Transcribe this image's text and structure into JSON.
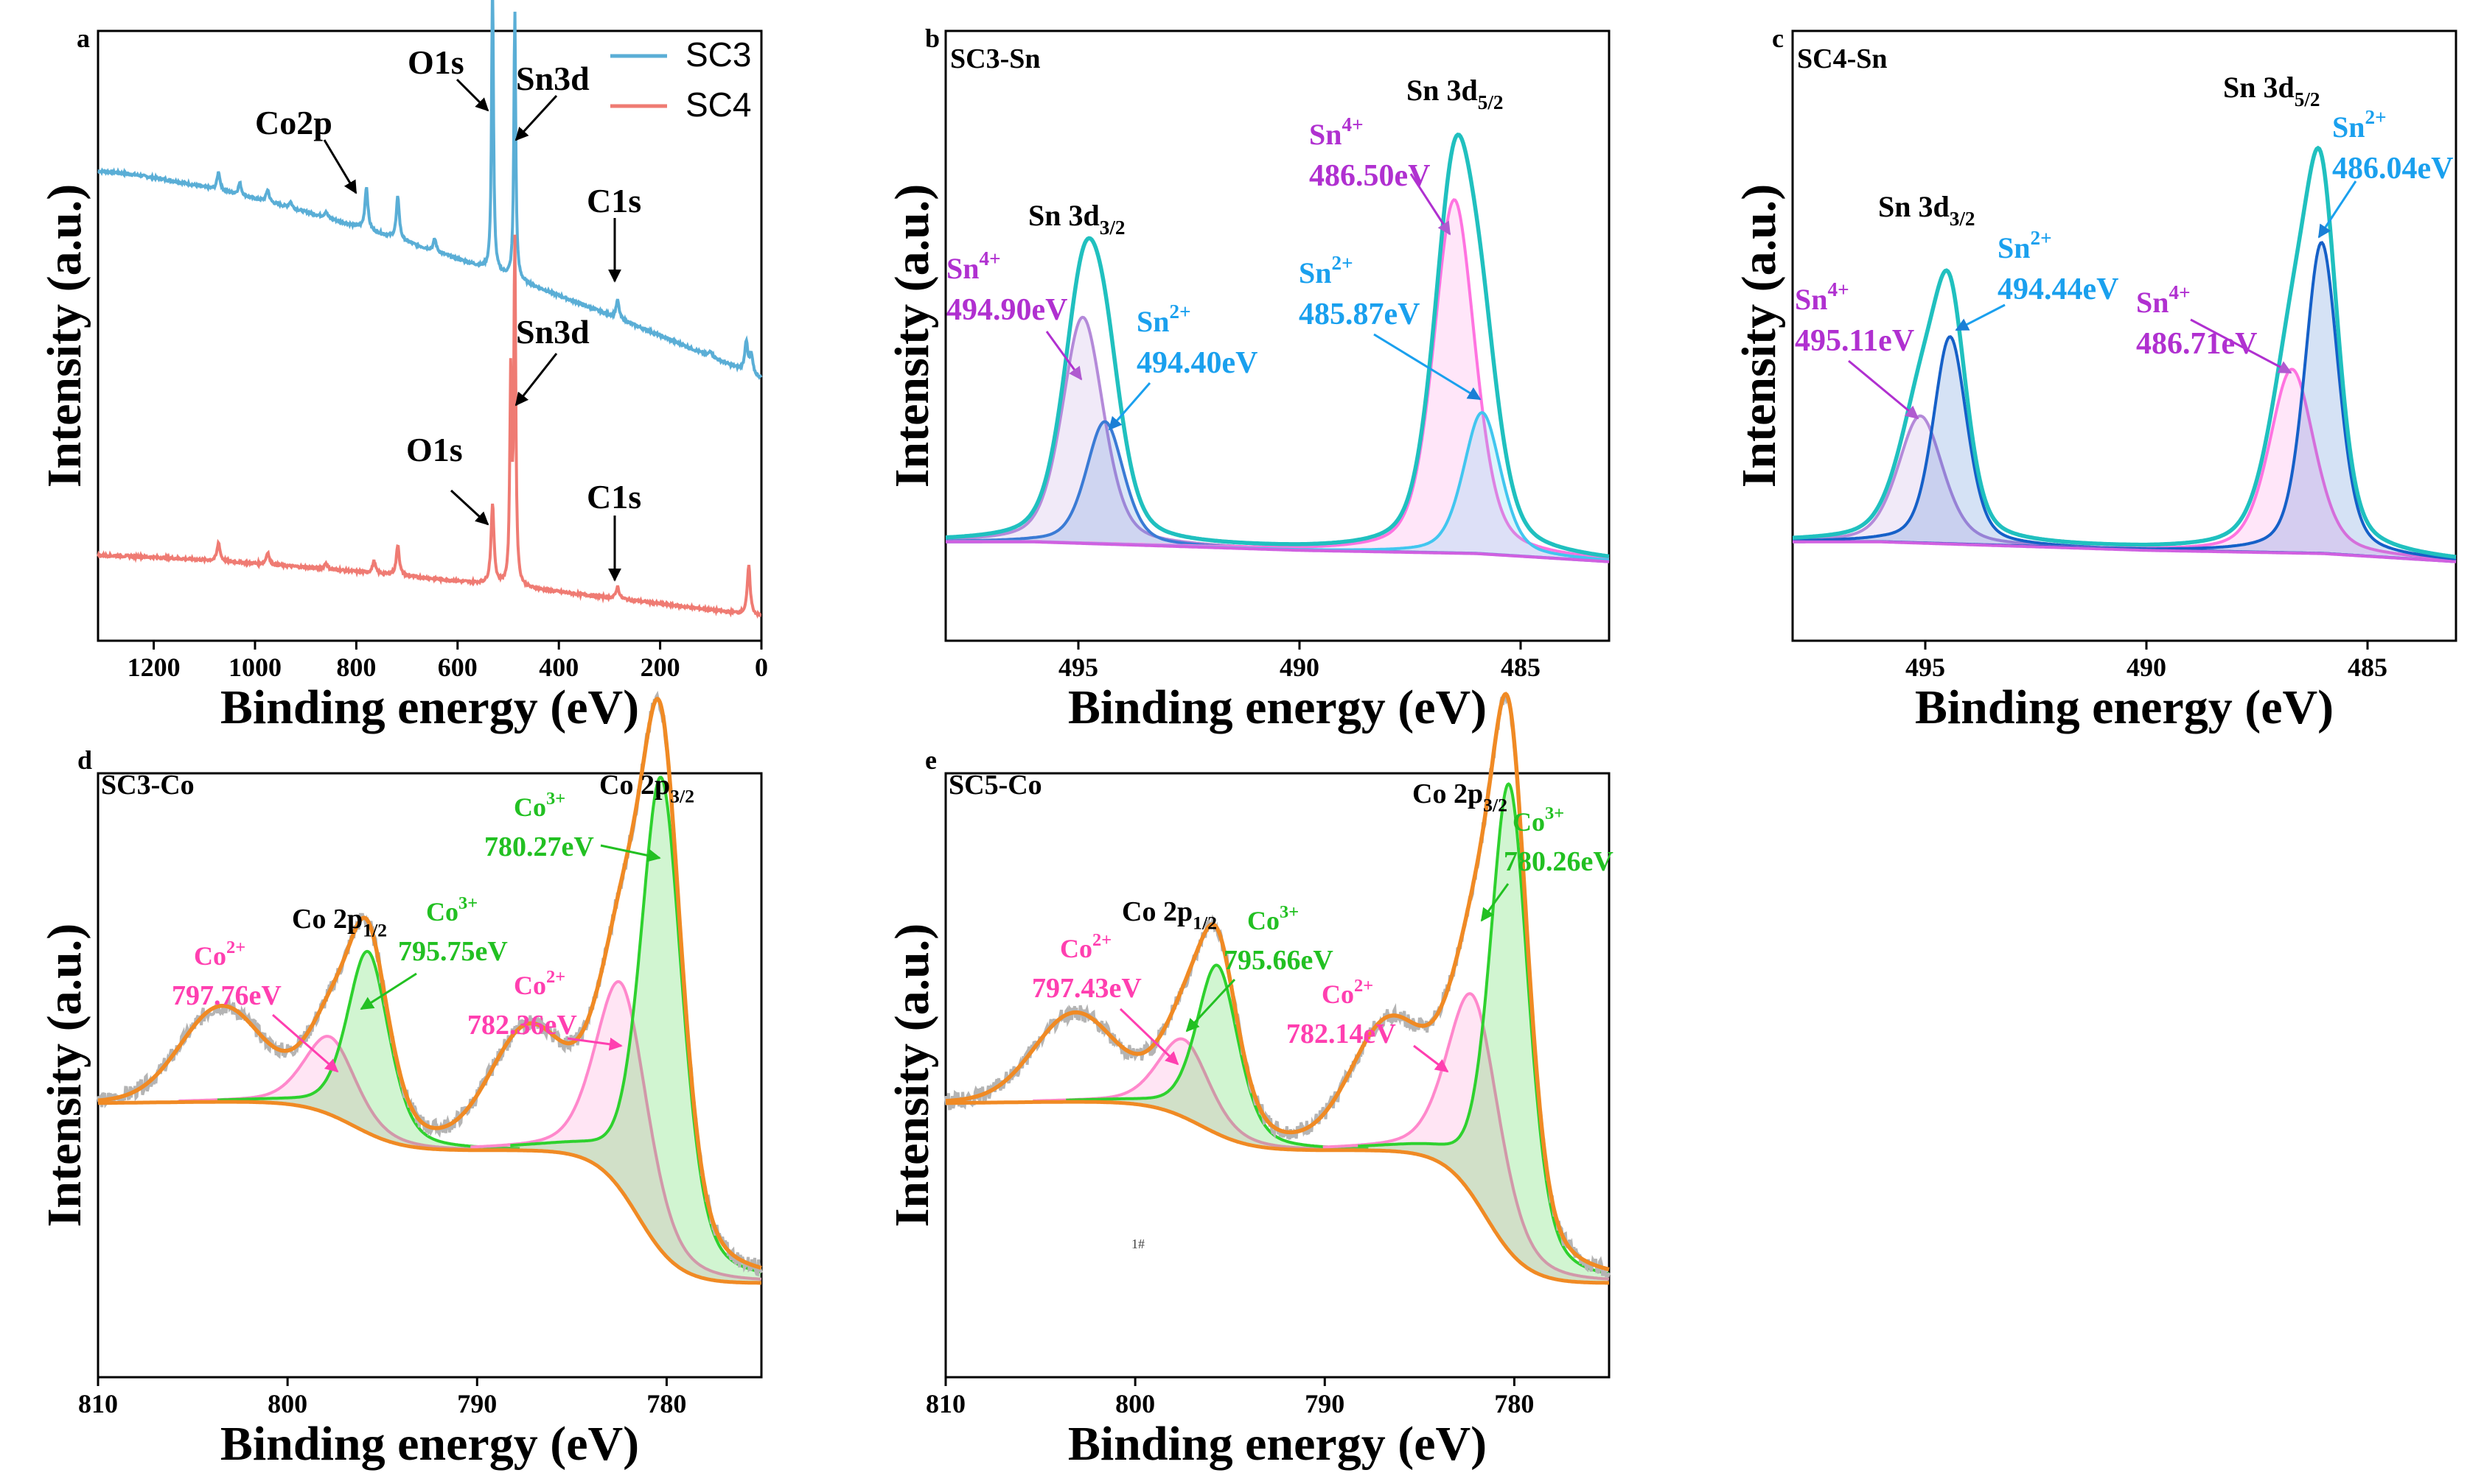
{
  "chart_data": [
    {
      "panel": "a",
      "type": "line",
      "title": "",
      "xlabel": "Binding energy (eV)",
      "ylabel": "Intensity (a.u.)",
      "xlim": [
        1310,
        0
      ],
      "xticks": [
        1200,
        1000,
        800,
        600,
        400,
        200,
        0
      ],
      "legend": {
        "position": "top-right",
        "entries": [
          {
            "name": "SC3",
            "color": "#5aaed6"
          },
          {
            "name": "SC4",
            "color": "#ef7b73"
          }
        ]
      },
      "series": [
        {
          "name": "SC3",
          "color": "#5aaed6",
          "baseline_start": 0.77,
          "baseline_end": 0.43,
          "peaks": [
            [
              1072,
              0.03
            ],
            [
              1030,
              0.02
            ],
            [
              975,
              0.02
            ],
            [
              930,
              0.01
            ],
            [
              860,
              0.01
            ],
            [
              780,
              0.07
            ],
            [
              718,
              0.07
            ],
            [
              645,
              0.02
            ],
            [
              531,
              0.48
            ],
            [
              487,
              0.44
            ],
            [
              284,
              0.03
            ],
            [
              100,
              0.01
            ],
            [
              30,
              0.05
            ],
            [
              20,
              0.03
            ]
          ]
        },
        {
          "name": "SC4",
          "color": "#ef7b73",
          "baseline_start": 0.14,
          "baseline_end": 0.04,
          "peaks": [
            [
              1072,
              0.03
            ],
            [
              975,
              0.02
            ],
            [
              860,
              0.01
            ],
            [
              765,
              0.02
            ],
            [
              718,
              0.05
            ],
            [
              531,
              0.13
            ],
            [
              495,
              0.34
            ],
            [
              487,
              0.56
            ],
            [
              284,
              0.02
            ],
            [
              25,
              0.08
            ]
          ]
        }
      ],
      "annotations": [
        {
          "text": "Co2p",
          "series": "SC3"
        },
        {
          "text": "O1s",
          "series": "SC3"
        },
        {
          "text": "Sn3d",
          "series": "SC3"
        },
        {
          "text": "C1s",
          "series": "SC3"
        },
        {
          "text": "Sn3d",
          "series": "SC4"
        },
        {
          "text": "O1s",
          "series": "SC4"
        },
        {
          "text": "C1s",
          "series": "SC4"
        }
      ]
    },
    {
      "panel": "b",
      "type": "line",
      "title": "SC3-Sn",
      "xlabel": "Binding energy (eV)",
      "ylabel": "Intensity (a.u.)",
      "xlim": [
        498,
        483
      ],
      "xticks": [
        495,
        490,
        485
      ],
      "series": [
        {
          "name": "Sn4+ 3d3/2",
          "center": 494.9,
          "height": 0.48,
          "width": 0.55,
          "color": "#b48ad9"
        },
        {
          "name": "Sn2+ 3d3/2",
          "center": 494.4,
          "height": 0.26,
          "width": 0.5,
          "color": "#3a7bd5"
        },
        {
          "name": "Sn4+ 3d5/2",
          "center": 486.5,
          "height": 0.75,
          "width": 0.55,
          "color": "#ff73e0"
        },
        {
          "name": "Sn2+ 3d5/2",
          "center": 485.87,
          "height": 0.3,
          "width": 0.5,
          "color": "#42c6ef"
        },
        {
          "name": "Envelope",
          "color": "#20c0bf"
        }
      ],
      "annotations": [
        {
          "text": "Sn 3d3/2"
        },
        {
          "text": "Sn 3d5/2"
        },
        {
          "text": "Sn4+",
          "value": "494.90eV"
        },
        {
          "text": "Sn2+",
          "value": "494.40eV"
        },
        {
          "text": "Sn4+",
          "value": "486.50eV"
        },
        {
          "text": "Sn2+",
          "value": "485.87eV"
        }
      ]
    },
    {
      "panel": "c",
      "type": "line",
      "title": "SC4-Sn",
      "xlabel": "Binding energy (eV)",
      "ylabel": "Intensity (a.u.)",
      "xlim": [
        498,
        483
      ],
      "xticks": [
        495,
        490,
        485
      ],
      "series": [
        {
          "name": "Sn4+ 3d3/2",
          "center": 495.11,
          "height": 0.27,
          "width": 0.6,
          "color": "#b48ad9"
        },
        {
          "name": "Sn2+ 3d3/2",
          "center": 494.44,
          "height": 0.44,
          "width": 0.45,
          "color": "#1560c8"
        },
        {
          "name": "Sn4+ 3d5/2",
          "center": 486.71,
          "height": 0.39,
          "width": 0.6,
          "color": "#ff73e0"
        },
        {
          "name": "Sn2+ 3d5/2",
          "center": 486.04,
          "height": 0.66,
          "width": 0.45,
          "color": "#1560c8"
        },
        {
          "name": "Envelope",
          "color": "#20c0bf"
        }
      ],
      "annotations": [
        {
          "text": "Sn 3d3/2"
        },
        {
          "text": "Sn 3d5/2"
        },
        {
          "text": "Sn4+",
          "value": "495.11eV"
        },
        {
          "text": "Sn2+",
          "value": "494.44eV"
        },
        {
          "text": "Sn4+",
          "value": "486.71eV"
        },
        {
          "text": "Sn2+",
          "value": "486.04eV"
        }
      ]
    },
    {
      "panel": "d",
      "type": "line",
      "title": "SC3-Co",
      "xlabel": "Binding energy (eV)",
      "ylabel": "Intensity (a.u.)",
      "xlim": [
        810,
        775
      ],
      "xticks": [
        810,
        800,
        790,
        780
      ],
      "series": [
        {
          "name": "Co2+ 2p1/2",
          "center": 797.76,
          "height": 0.12,
          "width": 1.6,
          "color": "#ff88cc"
        },
        {
          "name": "Co3+ 2p1/2",
          "center": 795.75,
          "height": 0.28,
          "width": 1.3,
          "color": "#2ed12e"
        },
        {
          "name": "Co2+ 2p3/2",
          "center": 782.36,
          "height": 0.32,
          "width": 1.6,
          "color": "#ff88cc"
        },
        {
          "name": "Co3+ 2p3/2",
          "center": 780.27,
          "height": 0.73,
          "width": 1.3,
          "color": "#2ed12e"
        },
        {
          "name": "Satellite 1",
          "center": 803.5,
          "height": 0.14,
          "width": 3.0,
          "color": "#f08a24"
        },
        {
          "name": "Satellite 2",
          "center": 787.3,
          "height": 0.17,
          "width": 2.8,
          "color": "#f08a24"
        },
        {
          "name": "Fit / Background",
          "color": "#f08a24"
        },
        {
          "name": "Raw",
          "color": "#b4b4b4"
        }
      ],
      "annotations": [
        {
          "text": "Co 2p1/2"
        },
        {
          "text": "Co 2p3/2"
        },
        {
          "text": "Co2+",
          "value": "797.76eV"
        },
        {
          "text": "Co3+",
          "value": "795.75eV"
        },
        {
          "text": "Co2+",
          "value": "782.36eV"
        },
        {
          "text": "Co3+",
          "value": "780.27eV"
        }
      ]
    },
    {
      "panel": "e",
      "type": "line",
      "title": "SC5-Co",
      "xlabel": "Binding energy (eV)",
      "ylabel": "Intensity (a.u.)",
      "xlim": [
        810,
        775
      ],
      "xticks": [
        810,
        800,
        790,
        780
      ],
      "series": [
        {
          "name": "Co2+ 2p1/2",
          "center": 797.43,
          "height": 0.12,
          "width": 1.6,
          "color": "#ff88cc"
        },
        {
          "name": "Co3+ 2p1/2",
          "center": 795.66,
          "height": 0.26,
          "width": 1.3,
          "color": "#2ed12e"
        },
        {
          "name": "Co2+ 2p3/2",
          "center": 782.14,
          "height": 0.31,
          "width": 1.6,
          "color": "#ff88cc"
        },
        {
          "name": "Co3+ 2p3/2",
          "center": 780.26,
          "height": 0.72,
          "width": 1.2,
          "color": "#2ed12e"
        },
        {
          "name": "Satellite 1",
          "center": 803.2,
          "height": 0.13,
          "width": 3.0,
          "color": "#f08a24"
        },
        {
          "name": "Satellite 2",
          "center": 786.6,
          "height": 0.18,
          "width": 2.8,
          "color": "#f08a24"
        },
        {
          "name": "Fit / Background",
          "color": "#f08a24"
        },
        {
          "name": "Raw",
          "color": "#b4b4b4"
        }
      ],
      "annotations": [
        {
          "text": "Co 2p1/2"
        },
        {
          "text": "Co 2p3/2"
        },
        {
          "text": "Co2+",
          "value": "797.43eV"
        },
        {
          "text": "Co3+",
          "value": "795.66eV"
        },
        {
          "text": "Co2+",
          "value": "782.14eV"
        },
        {
          "text": "Co3+",
          "value": "780.26eV"
        }
      ],
      "stray_text": "1#"
    }
  ]
}
